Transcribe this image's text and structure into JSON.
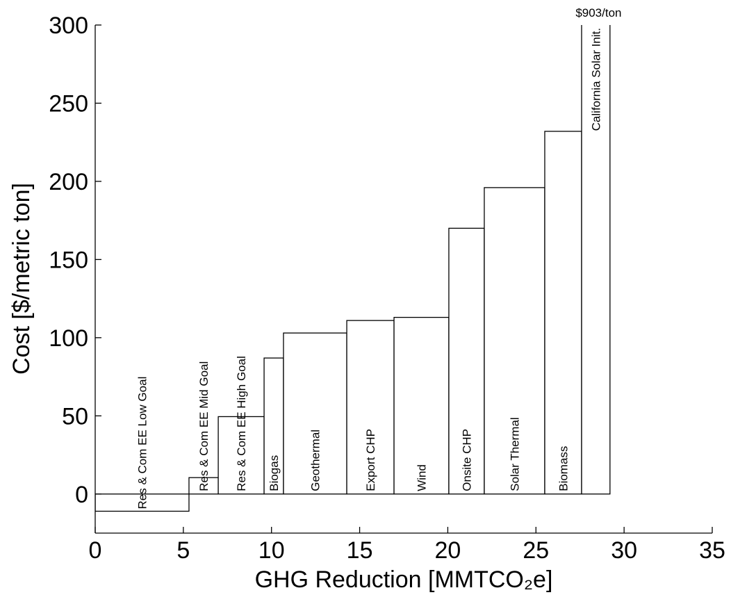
{
  "chart_data": {
    "type": "bar",
    "xlabel": "GHG Reduction [MMTCO₂e]",
    "ylabel": "Cost [$/metric ton]",
    "categories": [
      "Res & Com EE Low Goal",
      "Res & Com EE Mid Goal",
      "Res & Com EE High Goal",
      "Biogas",
      "Geothermal",
      "Export CHP",
      "Wind",
      "Onsite CHP",
      "Solar Thermal",
      "Biomass",
      "California Solar Init."
    ],
    "bins": [
      0,
      5.32,
      6.98,
      9.58,
      10.68,
      14.27,
      16.95,
      20.06,
      22.07,
      25.5,
      27.59,
      29.2
    ],
    "values": [
      -11,
      10.5,
      49.5,
      87,
      103,
      111,
      113,
      170,
      196,
      232,
      903
    ],
    "value_labels": [
      null,
      null,
      null,
      null,
      null,
      null,
      null,
      null,
      null,
      null,
      "$903/ton"
    ],
    "color": "#ffffff",
    "xlim": [
      0,
      35
    ],
    "xticks": [
      0,
      5,
      10,
      15,
      20,
      25,
      30,
      35
    ],
    "ylim": [
      -25,
      300
    ],
    "yticks": [
      0,
      50,
      100,
      150,
      200,
      250,
      300
    ]
  }
}
